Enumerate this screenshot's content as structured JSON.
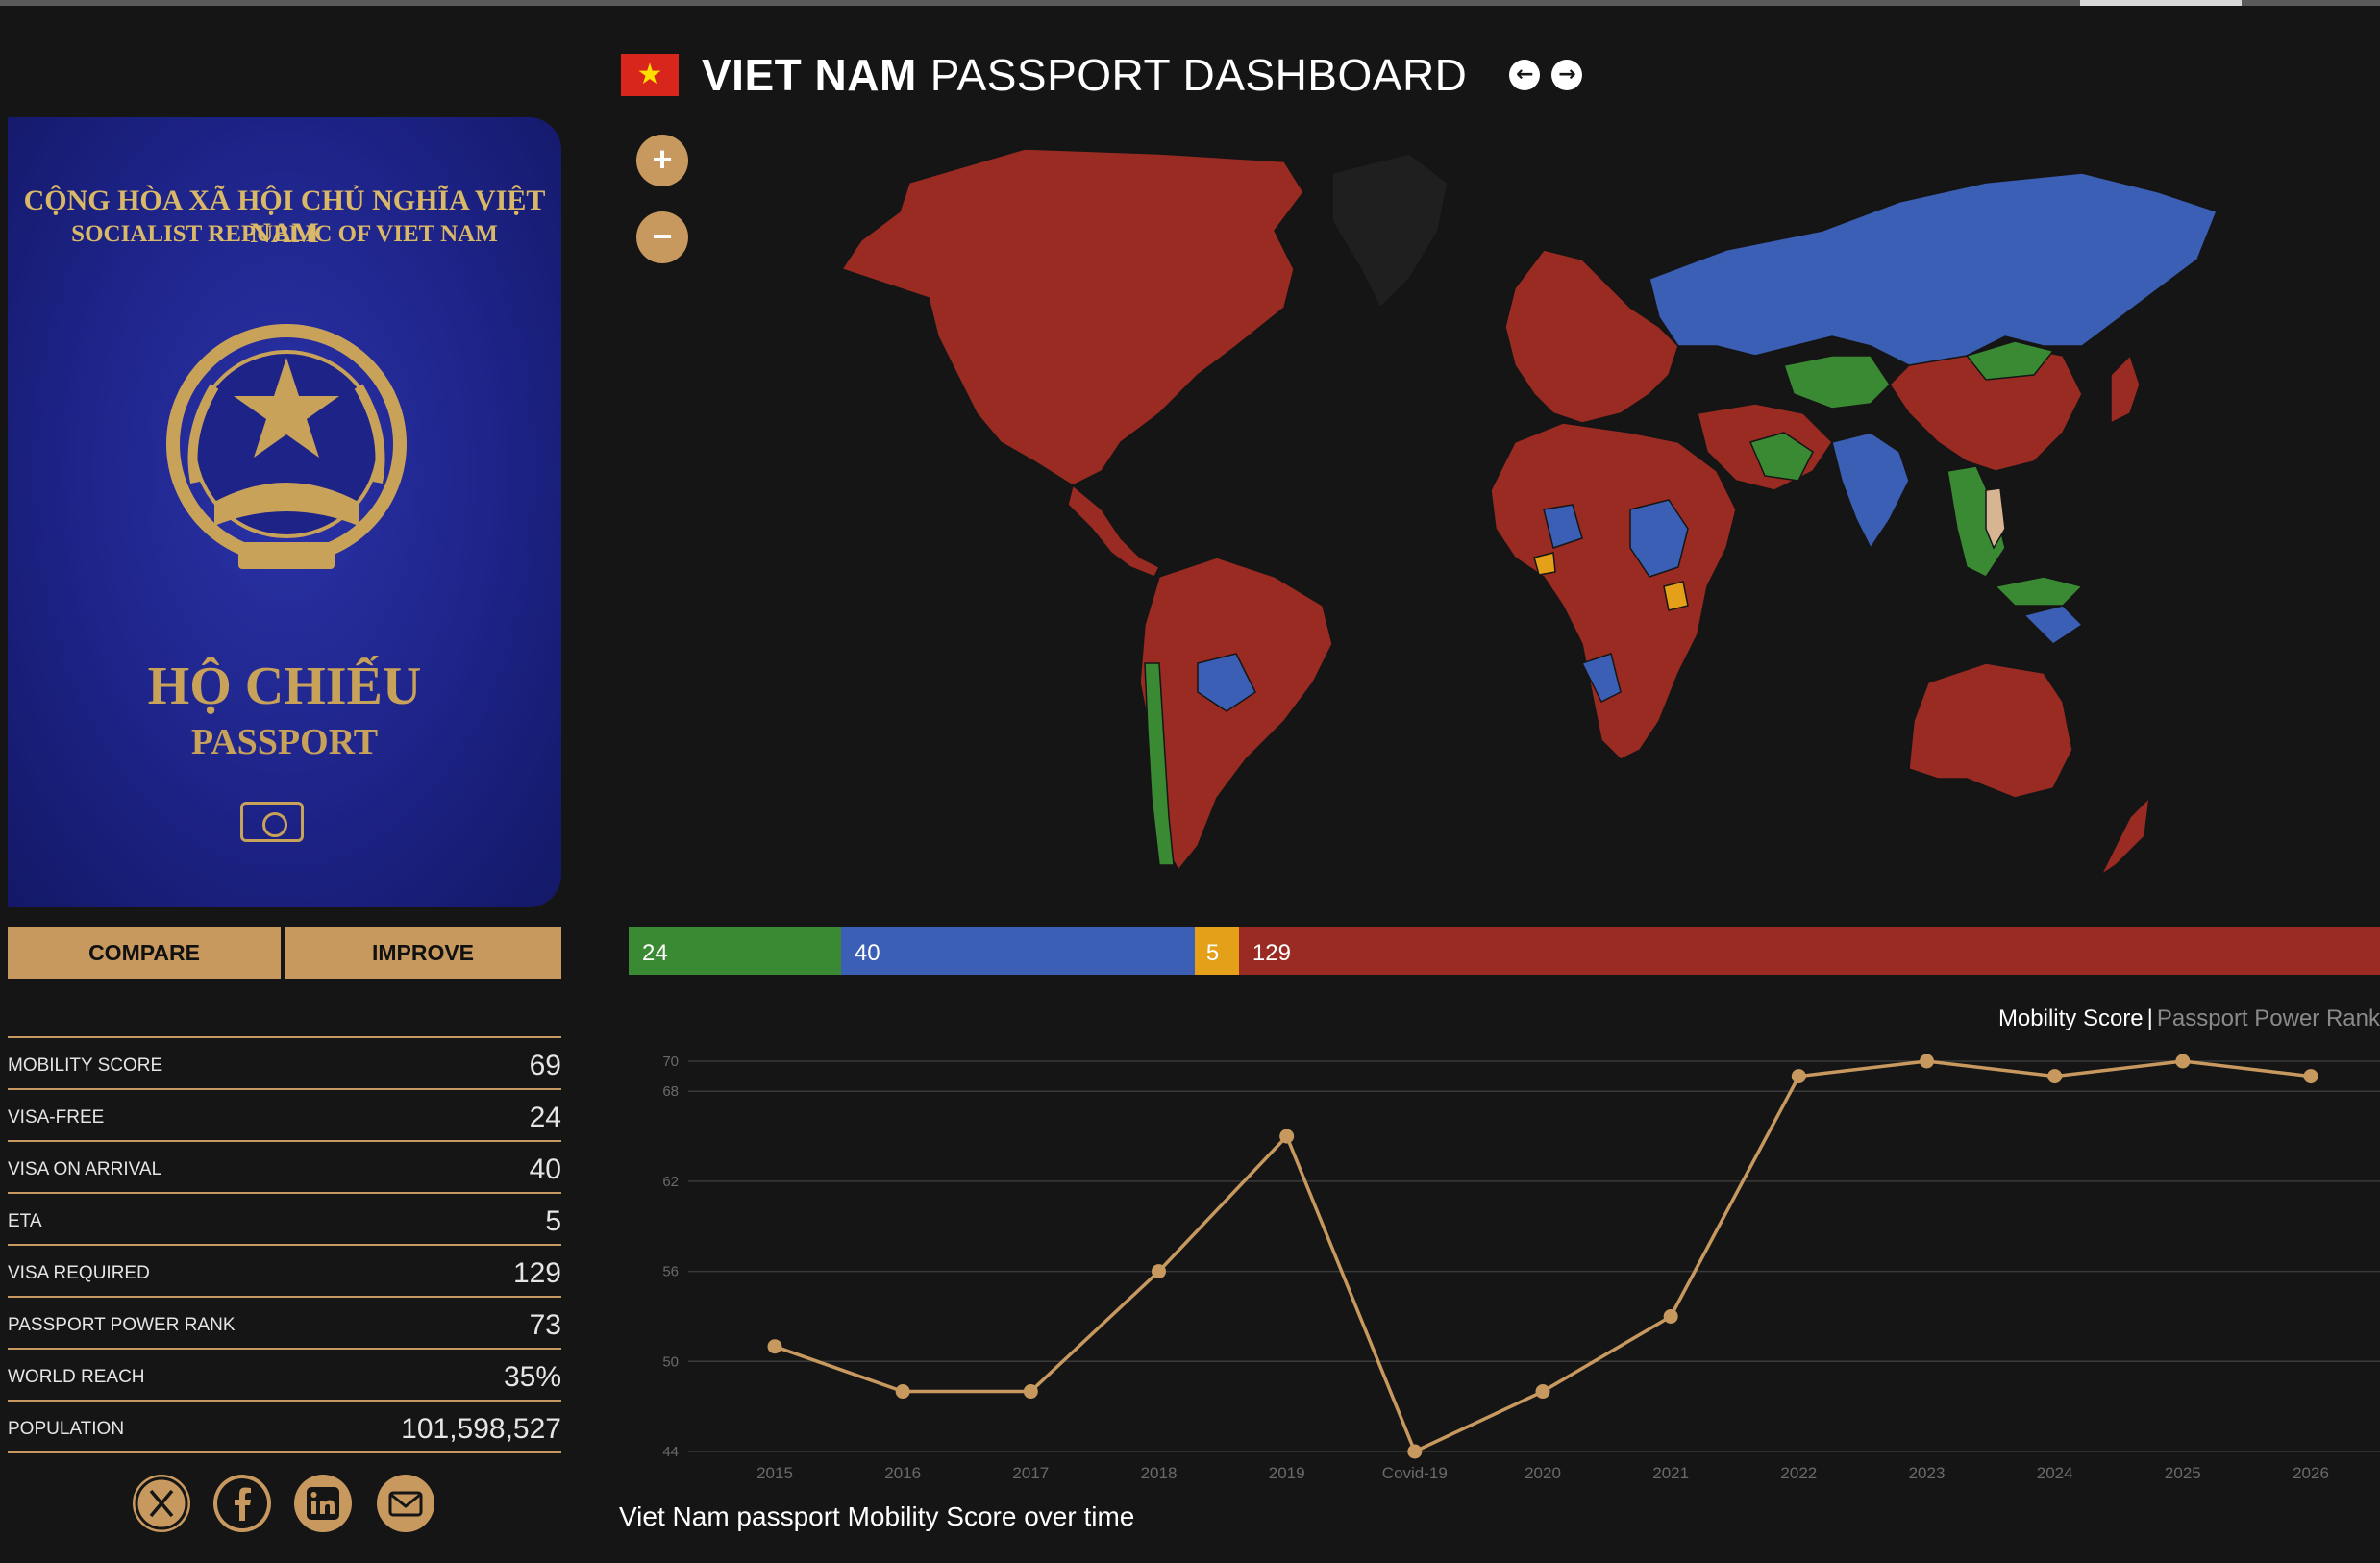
{
  "header": {
    "country": "VIET NAM",
    "title_rest": "PASSPORT DASHBOARD",
    "prev_icon": "arrow-left-icon",
    "next_icon": "arrow-right-icon"
  },
  "passport_cover": {
    "line1": "CỘNG HÒA XÃ HỘI CHỦ NGHĨA VIỆT NAM",
    "line2": "SOCIALIST REPUBLIC OF VIET NAM",
    "line3": "HỘ CHIẾU",
    "line4": "PASSPORT"
  },
  "actions": {
    "compare": "COMPARE",
    "improve": "IMPROVE"
  },
  "stats": [
    {
      "label": "MOBILITY SCORE",
      "value": "69"
    },
    {
      "label": "VISA-FREE",
      "value": "24"
    },
    {
      "label": "VISA ON ARRIVAL",
      "value": "40"
    },
    {
      "label": "ETA",
      "value": "5"
    },
    {
      "label": "VISA REQUIRED",
      "value": "129"
    },
    {
      "label": "PASSPORT POWER RANK",
      "value": "73"
    },
    {
      "label": "WORLD REACH",
      "value": "35%"
    },
    {
      "label": "POPULATION",
      "value": "101,598,527"
    }
  ],
  "social": [
    "x-icon",
    "facebook-icon",
    "linkedin-icon",
    "mail-icon"
  ],
  "map": {
    "zoom_in": "+",
    "zoom_out": "−"
  },
  "breakdown": [
    {
      "value": 24,
      "label": "24",
      "color": "#3a8a34"
    },
    {
      "value": 40,
      "label": "40",
      "color": "#3a5fb5"
    },
    {
      "value": 5,
      "label": "5",
      "color": "#e3a018"
    },
    {
      "value": 129,
      "label": "129",
      "color": "#9a2b22"
    }
  ],
  "chart_toggle": {
    "active": "Mobility Score",
    "separator": "|",
    "inactive": "Passport Power Rank"
  },
  "chart_data": {
    "type": "line",
    "categories": [
      "2015",
      "2016",
      "2017",
      "2018",
      "2019",
      "Covid-19",
      "2020",
      "2021",
      "2022",
      "2023",
      "2024",
      "2025",
      "2026"
    ],
    "series": [
      {
        "values": [
          51,
          48,
          48,
          56,
          65,
          44,
          48,
          53,
          69,
          70,
          69,
          70,
          69
        ]
      }
    ],
    "yticks": [
      44,
      50,
      56,
      62,
      68,
      70
    ],
    "ylim": [
      44,
      70
    ],
    "line_color": "#c8995f",
    "grid": true
  },
  "caption": "Viet Nam passport Mobility Score over time"
}
